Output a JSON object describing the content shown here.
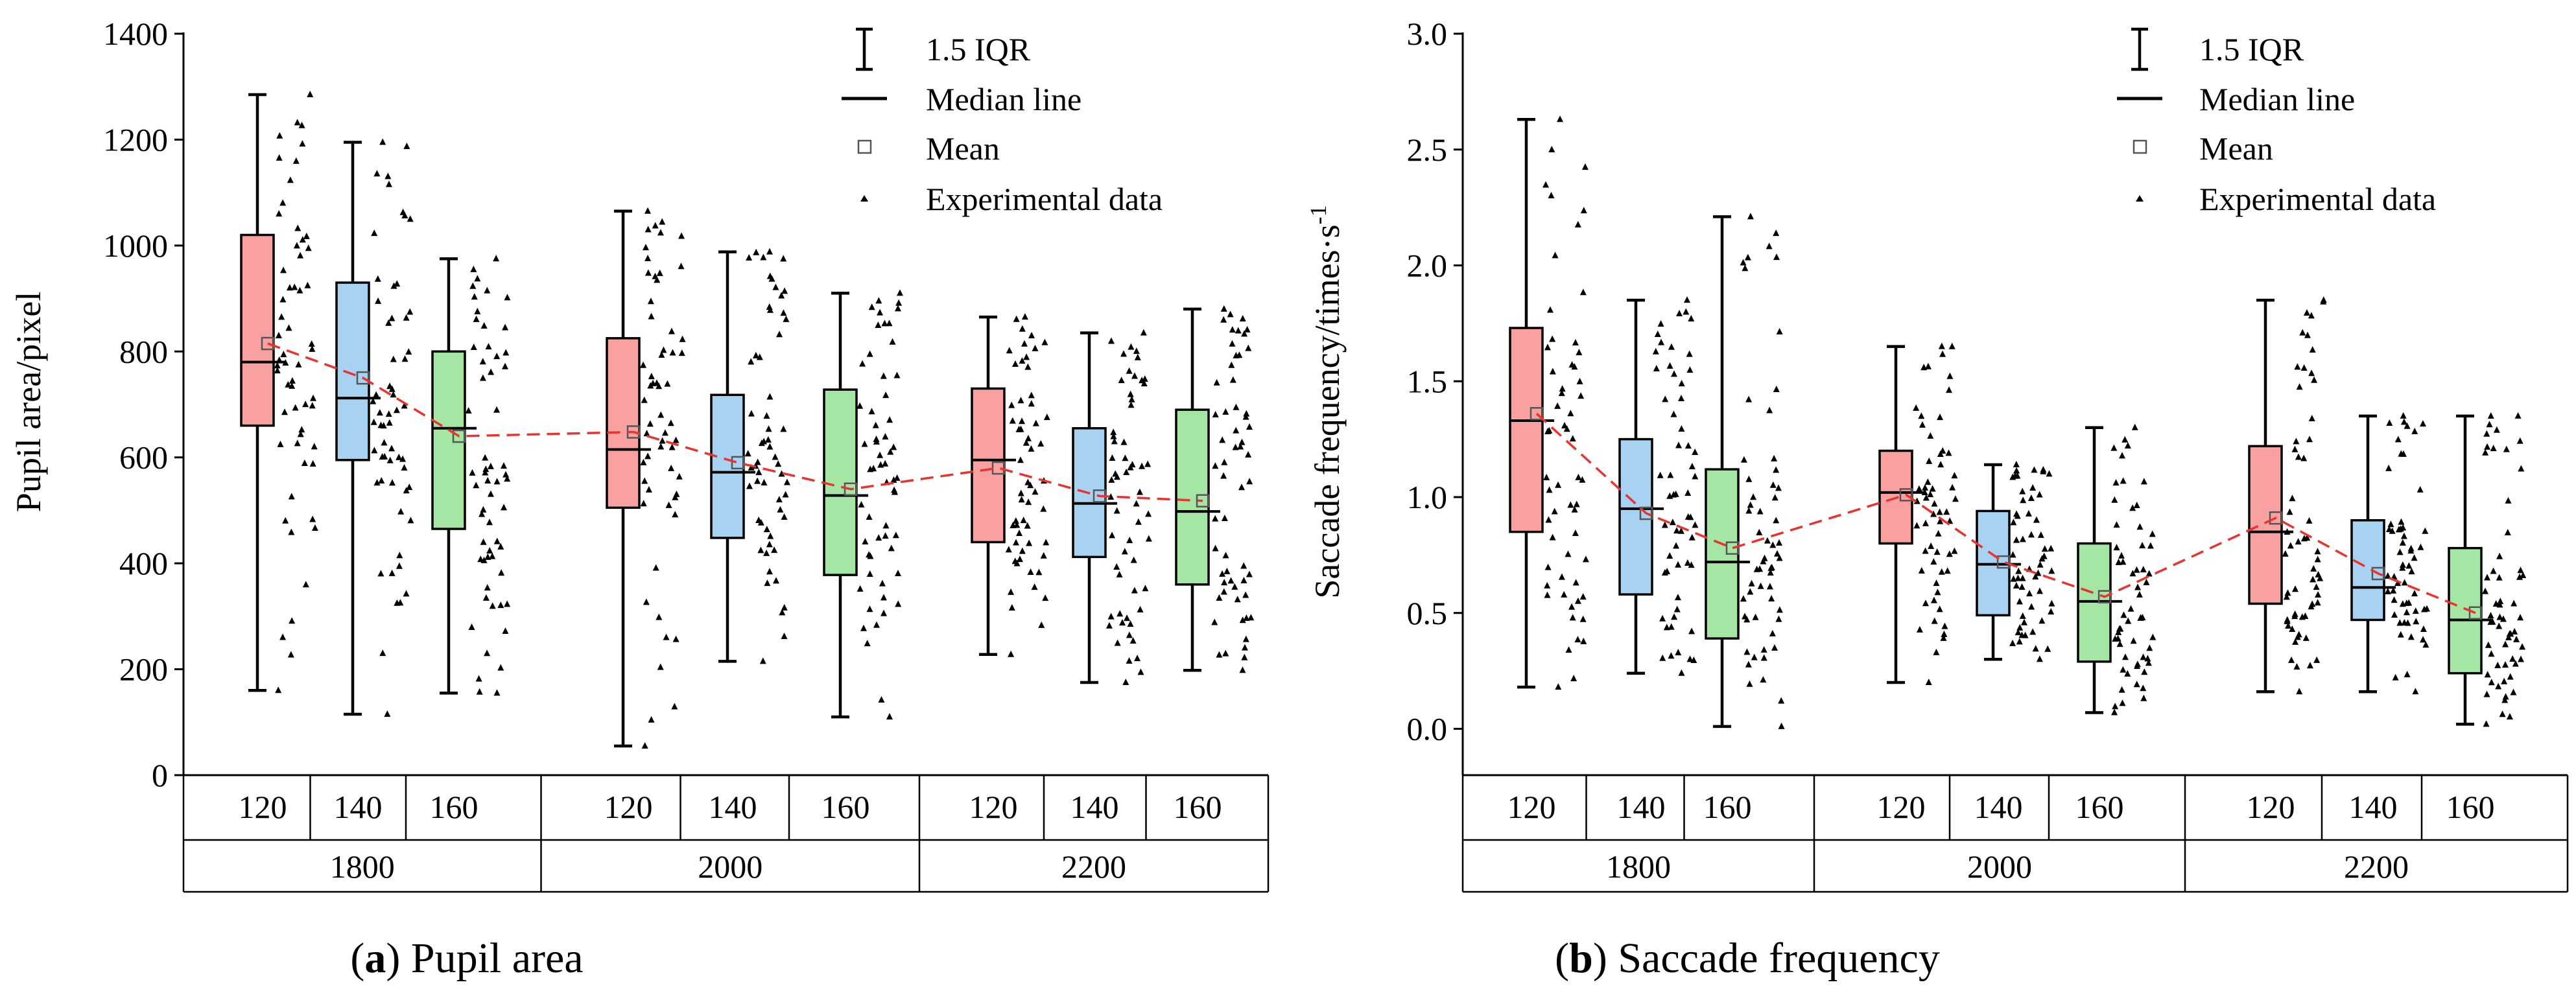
{
  "legend": {
    "iqr_label": "1.5 IQR",
    "median_label": "Median line",
    "mean_label": "Mean",
    "experimental_label": "Experimental data"
  },
  "colors": {
    "group_120": "#f9a0a0",
    "group_140": "#a8d2f2",
    "group_160": "#a5e6a5",
    "trend": "#e8332e"
  },
  "chart_data": [
    {
      "type": "box",
      "caption_letter": "a",
      "caption_text": "Pupil area",
      "ylabel": "Pupil area/pixel",
      "ylim": [
        0,
        1400
      ],
      "yticks": [
        0,
        200,
        400,
        600,
        800,
        1000,
        1200,
        1400
      ],
      "ytick_labels": [
        "0",
        "200",
        "400",
        "600",
        "800",
        "1000",
        "1200",
        "1400"
      ],
      "x_outer_labels": [
        "1800",
        "2000",
        "2200"
      ],
      "x_inner_labels": [
        "120",
        "140",
        "160",
        "120",
        "140",
        "160",
        "120",
        "140",
        "160"
      ],
      "boxes": [
        {
          "group": "1800",
          "sub": "120",
          "min": 160,
          "q1": 660,
          "median": 780,
          "q3": 1020,
          "max": 1285,
          "mean": 815
        },
        {
          "group": "1800",
          "sub": "140",
          "min": 115,
          "q1": 595,
          "median": 712,
          "q3": 930,
          "max": 1195,
          "mean": 750
        },
        {
          "group": "1800",
          "sub": "160",
          "min": 155,
          "q1": 465,
          "median": 655,
          "q3": 800,
          "max": 975,
          "mean": 640
        },
        {
          "group": "2000",
          "sub": "120",
          "min": 55,
          "q1": 505,
          "median": 615,
          "q3": 825,
          "max": 1065,
          "mean": 648
        },
        {
          "group": "2000",
          "sub": "140",
          "min": 215,
          "q1": 448,
          "median": 572,
          "q3": 718,
          "max": 988,
          "mean": 590
        },
        {
          "group": "2000",
          "sub": "160",
          "min": 110,
          "q1": 378,
          "median": 528,
          "q3": 728,
          "max": 910,
          "mean": 540
        },
        {
          "group": "2200",
          "sub": "120",
          "min": 228,
          "q1": 440,
          "median": 595,
          "q3": 730,
          "max": 865,
          "mean": 580
        },
        {
          "group": "2200",
          "sub": "140",
          "min": 175,
          "q1": 412,
          "median": 513,
          "q3": 655,
          "max": 835,
          "mean": 527
        },
        {
          "group": "2200",
          "sub": "160",
          "min": 198,
          "q1": 360,
          "median": 498,
          "q3": 690,
          "max": 880,
          "mean": 518
        }
      ]
    },
    {
      "type": "box",
      "caption_letter": "b",
      "caption_text": "Saccade frequency",
      "ylabel": "Saccade frequency/times·s",
      "ylabel_superscript": "-1",
      "ylim": [
        -0.2,
        3.0
      ],
      "yticks": [
        0.0,
        0.5,
        1.0,
        1.5,
        2.0,
        2.5,
        3.0
      ],
      "ytick_labels": [
        "0.0",
        "0.5",
        "1.0",
        "1.5",
        "2.0",
        "2.5",
        "3.0"
      ],
      "x_outer_labels": [
        "1800",
        "2000",
        "2200"
      ],
      "x_inner_labels": [
        "120",
        "140",
        "160",
        "120",
        "140",
        "160",
        "120",
        "140",
        "160"
      ],
      "boxes": [
        {
          "group": "1800",
          "sub": "120",
          "min": 0.18,
          "q1": 0.85,
          "median": 1.33,
          "q3": 1.73,
          "max": 2.63,
          "mean": 1.36
        },
        {
          "group": "1800",
          "sub": "140",
          "min": 0.24,
          "q1": 0.58,
          "median": 0.95,
          "q3": 1.25,
          "max": 1.85,
          "mean": 0.93
        },
        {
          "group": "1800",
          "sub": "160",
          "min": 0.01,
          "q1": 0.39,
          "median": 0.72,
          "q3": 1.12,
          "max": 2.21,
          "mean": 0.78
        },
        {
          "group": "2000",
          "sub": "120",
          "min": 0.2,
          "q1": 0.8,
          "median": 1.02,
          "q3": 1.2,
          "max": 1.65,
          "mean": 1.01
        },
        {
          "group": "2000",
          "sub": "140",
          "min": 0.3,
          "q1": 0.49,
          "median": 0.71,
          "q3": 0.94,
          "max": 1.14,
          "mean": 0.72
        },
        {
          "group": "2000",
          "sub": "160",
          "min": 0.07,
          "q1": 0.29,
          "median": 0.55,
          "q3": 0.8,
          "max": 1.3,
          "mean": 0.57
        },
        {
          "group": "2200",
          "sub": "120",
          "min": 0.16,
          "q1": 0.54,
          "median": 0.85,
          "q3": 1.22,
          "max": 1.85,
          "mean": 0.91
        },
        {
          "group": "2200",
          "sub": "140",
          "min": 0.16,
          "q1": 0.47,
          "median": 0.61,
          "q3": 0.9,
          "max": 1.35,
          "mean": 0.67
        },
        {
          "group": "2200",
          "sub": "160",
          "min": 0.02,
          "q1": 0.24,
          "median": 0.47,
          "q3": 0.78,
          "max": 1.35,
          "mean": 0.5
        }
      ]
    }
  ]
}
